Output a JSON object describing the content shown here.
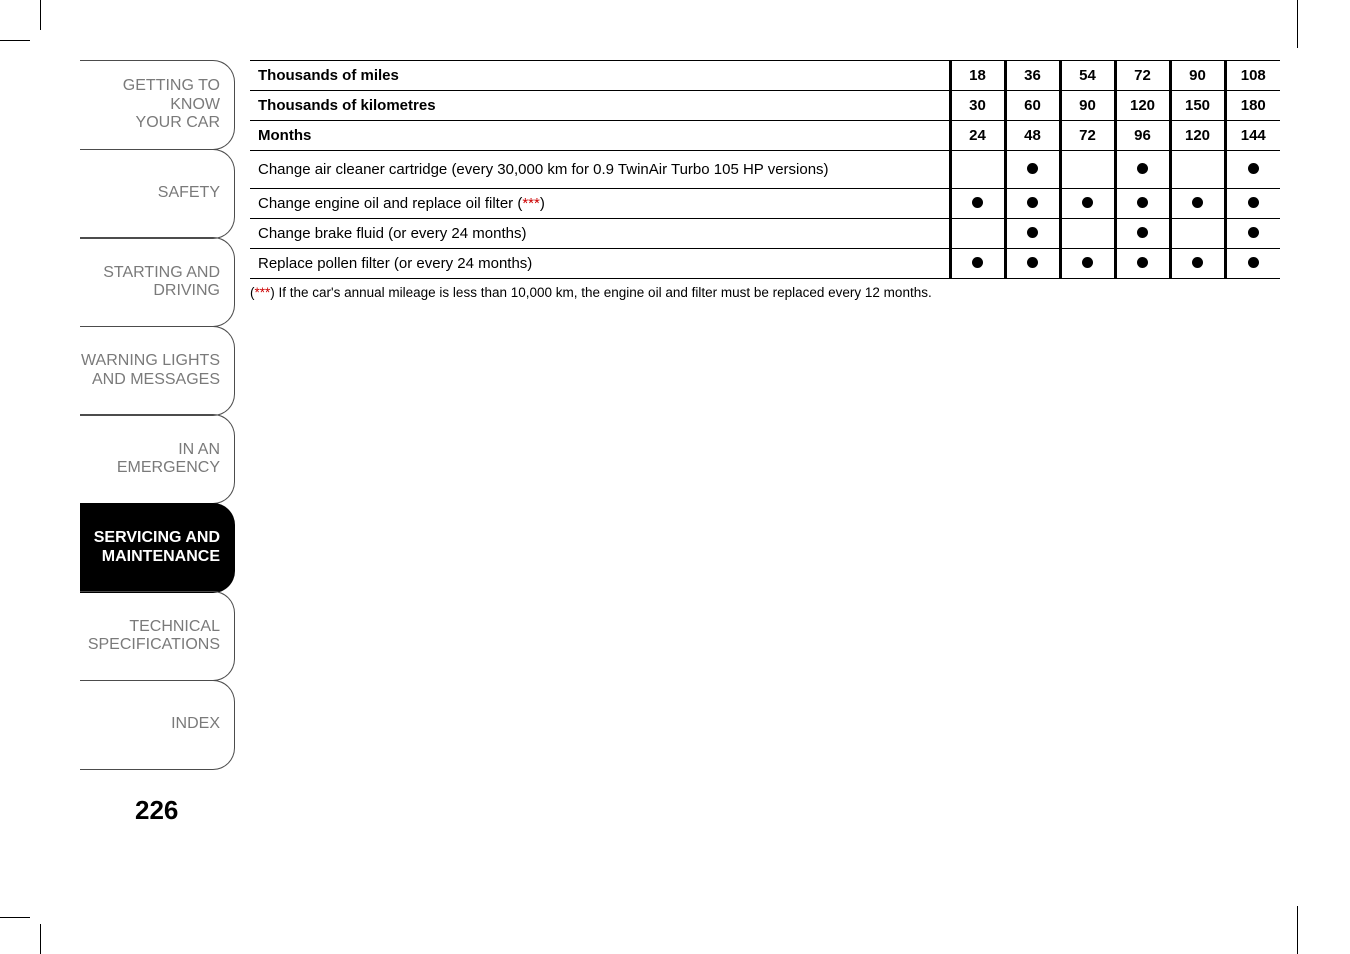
{
  "nav": {
    "items": [
      {
        "lines": [
          "GETTING TO KNOW",
          "YOUR CAR"
        ],
        "active": false
      },
      {
        "lines": [
          "SAFETY"
        ],
        "active": false
      },
      {
        "lines": [
          "STARTING AND",
          "DRIVING"
        ],
        "active": false
      },
      {
        "lines": [
          "WARNING LIGHTS",
          "AND MESSAGES"
        ],
        "active": false
      },
      {
        "lines": [
          "IN AN EMERGENCY"
        ],
        "active": false
      },
      {
        "lines": [
          "SERVICING AND",
          "MAINTENANCE"
        ],
        "active": true
      },
      {
        "lines": [
          "TECHNICAL",
          "SPECIFICATIONS"
        ],
        "active": false
      },
      {
        "lines": [
          "INDEX"
        ],
        "active": false
      }
    ]
  },
  "page_number": "226",
  "table": {
    "header_rows": [
      {
        "label": "Thousands of miles",
        "values": [
          "18",
          "36",
          "54",
          "72",
          "90",
          "108"
        ]
      },
      {
        "label": "Thousands of kilometres",
        "values": [
          "30",
          "60",
          "90",
          "120",
          "150",
          "180"
        ]
      },
      {
        "label": "Months",
        "values": [
          "24",
          "48",
          "72",
          "96",
          "120",
          "144"
        ]
      }
    ],
    "rows": [
      {
        "label": "Change air cleaner cartridge (every 30,000 km for 0.9 TwinAir Turbo 105 HP versions)",
        "dots": [
          false,
          true,
          false,
          true,
          false,
          true
        ],
        "tall": true
      },
      {
        "label_pre": "Change engine oil and replace oil filter (",
        "label_star": "***",
        "label_post": ")",
        "dots": [
          true,
          true,
          true,
          true,
          true,
          true
        ]
      },
      {
        "label": "Change brake fluid (or every 24 months)",
        "dots": [
          false,
          true,
          false,
          true,
          false,
          true
        ]
      },
      {
        "label": "Replace pollen filter (or every 24 months)",
        "dots": [
          true,
          true,
          true,
          true,
          true,
          true
        ]
      }
    ]
  },
  "footnote": {
    "pre": "(",
    "star": "***",
    "post": ") If the car's annual mileage is less than 10,000 km, the engine oil and filter must be replaced every 12 months."
  }
}
